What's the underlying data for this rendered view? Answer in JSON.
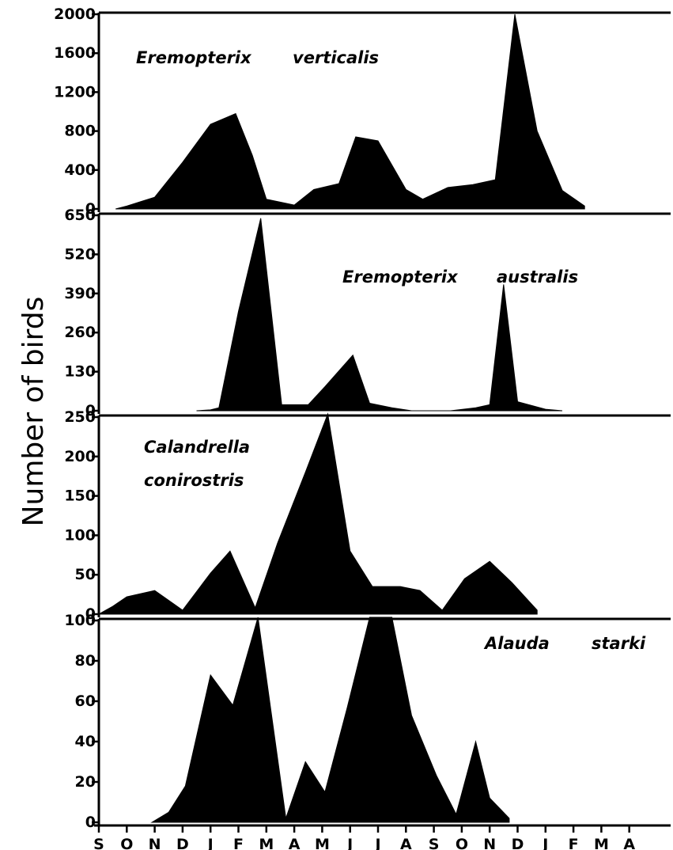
{
  "chart_data": {
    "type": "area",
    "ylabel": "Number of birds",
    "months": [
      "S",
      "O",
      "N",
      "D",
      "J",
      "F",
      "M",
      "A",
      "M",
      "J",
      "J",
      "A",
      "S",
      "O",
      "N",
      "D",
      "J",
      "F",
      "M",
      "A"
    ],
    "colors": {
      "fill": "#000000",
      "axis": "#000000"
    },
    "panels": [
      {
        "title_lines": [
          "Eremopterix",
          "verticalis"
        ],
        "ylim": [
          0,
          2000
        ],
        "yticks": [
          0,
          400,
          800,
          1200,
          1600,
          2000
        ],
        "ytick_labels": [
          "0",
          "400",
          "800",
          "1200",
          "1600",
          "2000"
        ],
        "points": [
          [
            0.6,
            0
          ],
          [
            1.0,
            30
          ],
          [
            2.0,
            120
          ],
          [
            3.0,
            480
          ],
          [
            4.0,
            870
          ],
          [
            4.9,
            980
          ],
          [
            5.5,
            550
          ],
          [
            6.0,
            100
          ],
          [
            7.0,
            40
          ],
          [
            7.7,
            200
          ],
          [
            8.6,
            260
          ],
          [
            9.2,
            740
          ],
          [
            10.0,
            700
          ],
          [
            11.0,
            200
          ],
          [
            11.6,
            100
          ],
          [
            12.5,
            220
          ],
          [
            13.4,
            250
          ],
          [
            14.2,
            300
          ],
          [
            14.9,
            2000
          ],
          [
            15.7,
            800
          ],
          [
            16.6,
            190
          ],
          [
            17.4,
            30
          ]
        ]
      },
      {
        "title_lines": [
          "Eremopterix",
          "australis"
        ],
        "ylim": [
          0,
          650
        ],
        "yticks": [
          0,
          130,
          260,
          390,
          520,
          650
        ],
        "ytick_labels": [
          "0",
          "130",
          "260",
          "390",
          "520",
          "650"
        ],
        "points": [
          [
            3.5,
            0
          ],
          [
            4.0,
            3
          ],
          [
            4.3,
            10
          ],
          [
            5.0,
            330
          ],
          [
            5.8,
            640
          ],
          [
            6.55,
            20
          ],
          [
            7.5,
            20
          ],
          [
            8.1,
            80
          ],
          [
            9.1,
            185
          ],
          [
            9.7,
            25
          ],
          [
            10.5,
            10
          ],
          [
            11.2,
            0
          ],
          [
            12.6,
            0
          ],
          [
            13.5,
            10
          ],
          [
            14.0,
            20
          ],
          [
            14.5,
            420
          ],
          [
            15.0,
            30
          ],
          [
            16.0,
            5
          ],
          [
            16.6,
            0
          ]
        ]
      },
      {
        "title_lines": [
          "Calandrella",
          "conirostris"
        ],
        "ylim": [
          0,
          250
        ],
        "yticks": [
          0,
          50,
          100,
          150,
          200,
          250
        ],
        "ytick_labels": [
          "0",
          "50",
          "100",
          "150",
          "200",
          "250"
        ],
        "points": [
          [
            0.0,
            0
          ],
          [
            0.5,
            10
          ],
          [
            1.0,
            22
          ],
          [
            2.0,
            30
          ],
          [
            3.0,
            5
          ],
          [
            4.0,
            52
          ],
          [
            4.7,
            80
          ],
          [
            5.6,
            8
          ],
          [
            6.4,
            90
          ],
          [
            7.4,
            180
          ],
          [
            8.2,
            265
          ],
          [
            9.0,
            80
          ],
          [
            9.8,
            35
          ],
          [
            10.8,
            35
          ],
          [
            11.5,
            30
          ],
          [
            12.3,
            5
          ],
          [
            13.1,
            45
          ],
          [
            14.0,
            67
          ],
          [
            14.8,
            40
          ],
          [
            15.7,
            5
          ]
        ]
      },
      {
        "title_lines": [
          "Alauda",
          "starki"
        ],
        "ylim": [
          0,
          100
        ],
        "yticks": [
          0,
          20,
          40,
          60,
          80,
          100
        ],
        "ytick_labels": [
          "0",
          "20",
          "40",
          "60",
          "80",
          "100"
        ],
        "points": [
          [
            1.9,
            0
          ],
          [
            2.5,
            5
          ],
          [
            3.1,
            18
          ],
          [
            4.0,
            73
          ],
          [
            4.8,
            58
          ],
          [
            5.7,
            103
          ],
          [
            6.7,
            2
          ],
          [
            7.4,
            30
          ],
          [
            8.1,
            15
          ],
          [
            8.9,
            57
          ],
          [
            9.7,
            103
          ],
          [
            10.5,
            103
          ],
          [
            11.2,
            53
          ],
          [
            12.1,
            23
          ],
          [
            12.8,
            4
          ],
          [
            13.5,
            40
          ],
          [
            14.0,
            12
          ],
          [
            14.7,
            2
          ]
        ]
      }
    ]
  }
}
